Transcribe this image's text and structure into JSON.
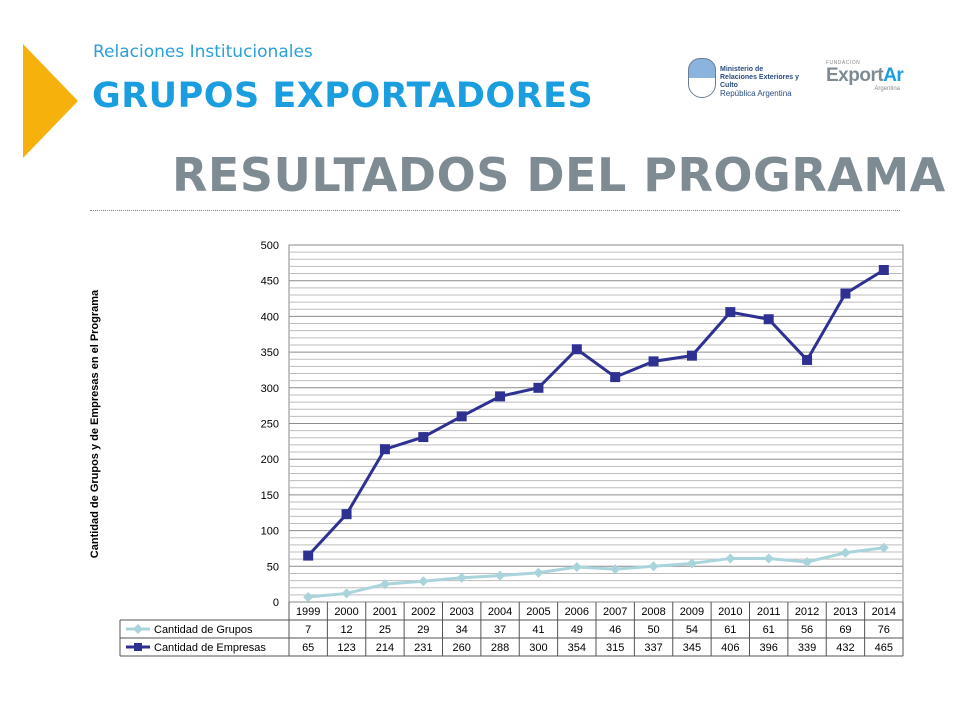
{
  "header": {
    "subtitle": "Relaciones Institucionales",
    "heading": "GRUPOS EXPORTADORES",
    "title": "RESULTADOS DEL PROGRAMA"
  },
  "logos": {
    "ministry_line1": "Ministerio de",
    "ministry_line2": "Relaciones Exteriores y Culto",
    "ministry_line3": "República Argentina",
    "exportar_small": "FUNDACION",
    "exportar_main_1": "Export",
    "exportar_main_2": "Ar",
    "exportar_country": "Argentina"
  },
  "colors": {
    "accent_triangle": "#f6b10d",
    "title_blue": "#1a9ee0",
    "title_gray": "#7f8b93",
    "series_grupos": "#a9d4dc",
    "series_empresas": "#2e3192"
  },
  "chart_data": {
    "type": "line",
    "ylabel": "Cantidad de Grupos y de Empresas en el Programa",
    "xlabel": "",
    "ylim": [
      0,
      500
    ],
    "yticks": [
      0,
      50,
      100,
      150,
      200,
      250,
      300,
      350,
      400,
      450,
      500
    ],
    "grid": true,
    "legend": "data-table-below",
    "categories": [
      "1999",
      "2000",
      "2001",
      "2002",
      "2003",
      "2004",
      "2005",
      "2006",
      "2007",
      "2008",
      "2009",
      "2010",
      "2011",
      "2012",
      "2013",
      "2014"
    ],
    "series": [
      {
        "name": "Cantidad de Grupos",
        "marker": "diamond",
        "values": [
          7,
          12,
          25,
          29,
          34,
          37,
          41,
          49,
          46,
          50,
          54,
          61,
          61,
          56,
          69,
          76
        ]
      },
      {
        "name": "Cantidad de Empresas",
        "marker": "square",
        "values": [
          65,
          123,
          214,
          231,
          260,
          288,
          300,
          354,
          315,
          337,
          345,
          406,
          396,
          339,
          432,
          465
        ]
      }
    ]
  }
}
